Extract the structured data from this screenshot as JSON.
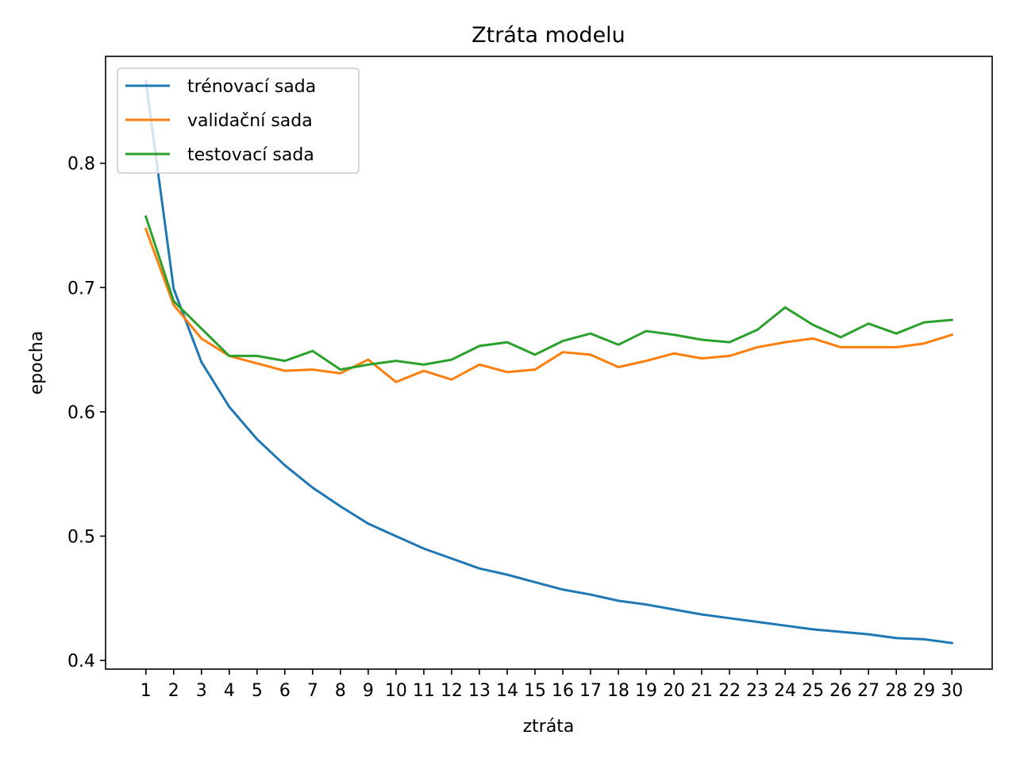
{
  "chart_data": {
    "type": "line",
    "title": "Ztráta modelu",
    "xlabel": "ztráta",
    "ylabel": "epocha",
    "x": [
      1,
      2,
      3,
      4,
      5,
      6,
      7,
      8,
      9,
      10,
      11,
      12,
      13,
      14,
      15,
      16,
      17,
      18,
      19,
      20,
      21,
      22,
      23,
      24,
      25,
      26,
      27,
      28,
      29,
      30
    ],
    "x_tick_labels": [
      "1",
      "2",
      "3",
      "4",
      "5",
      "6",
      "7",
      "8",
      "9",
      "10",
      "11",
      "12",
      "13",
      "14",
      "15",
      "16",
      "17",
      "18",
      "19",
      "20",
      "21",
      "22",
      "23",
      "24",
      "25",
      "26",
      "27",
      "28",
      "29",
      "30"
    ],
    "y_ticks": [
      0.4,
      0.5,
      0.6,
      0.7,
      0.8
    ],
    "y_tick_labels": [
      "0.4",
      "0.5",
      "0.6",
      "0.7",
      "0.8"
    ],
    "xlim": [
      -0.45,
      31.45
    ],
    "ylim": [
      0.393,
      0.886
    ],
    "grid": false,
    "legend_position": "upper-left",
    "series": [
      {
        "name": "trénovací sada",
        "color": "#1f77b4",
        "values": [
          0.866,
          0.699,
          0.64,
          0.604,
          0.578,
          0.557,
          0.539,
          0.524,
          0.51,
          0.5,
          0.49,
          0.482,
          0.474,
          0.469,
          0.463,
          0.457,
          0.453,
          0.448,
          0.445,
          0.441,
          0.437,
          0.434,
          0.431,
          0.428,
          0.425,
          0.423,
          0.421,
          0.418,
          0.417,
          0.414
        ]
      },
      {
        "name": "validační sada",
        "color": "#ff7f0e",
        "values": [
          0.747,
          0.686,
          0.659,
          0.645,
          0.639,
          0.633,
          0.634,
          0.631,
          0.642,
          0.624,
          0.633,
          0.626,
          0.638,
          0.632,
          0.634,
          0.648,
          0.646,
          0.636,
          0.641,
          0.647,
          0.643,
          0.645,
          0.652,
          0.656,
          0.659,
          0.652,
          0.652,
          0.652,
          0.655,
          0.662
        ]
      },
      {
        "name": "testovací sada",
        "color": "#2ca02c",
        "values": [
          0.757,
          0.689,
          0.667,
          0.645,
          0.645,
          0.641,
          0.649,
          0.634,
          0.638,
          0.641,
          0.638,
          0.642,
          0.653,
          0.656,
          0.646,
          0.657,
          0.663,
          0.654,
          0.665,
          0.662,
          0.658,
          0.656,
          0.666,
          0.684,
          0.67,
          0.66,
          0.671,
          0.663,
          0.672,
          0.674
        ]
      }
    ]
  }
}
